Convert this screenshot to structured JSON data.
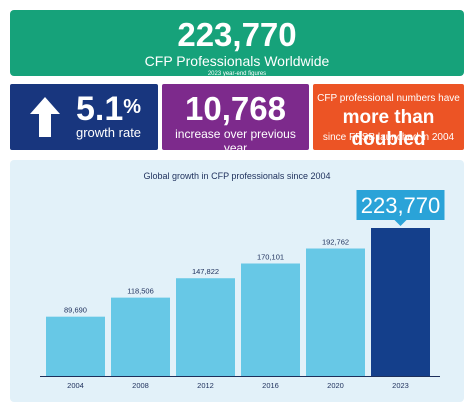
{
  "banner": {
    "headline": "223,770",
    "subtitle": "CFP Professionals Worldwide",
    "note": "2023 year-end figures"
  },
  "stats": {
    "growth_value": "5.1",
    "growth_unit": "%",
    "growth_label": "growth rate",
    "increase_value": "10,768",
    "increase_label": "increase over previous year",
    "doubled_line1": "CFP professional numbers have",
    "doubled_line2": "more than doubled",
    "doubled_line3": "since FPSB launched in 2004"
  },
  "colors": {
    "bar": "#67c8e6",
    "bar_highlight": "#143f8b",
    "value_text": "#1d2f5b",
    "callout_bg": "#2aa3d8"
  },
  "chart_data": {
    "type": "bar",
    "title": "Global growth in CFP professionals since 2004",
    "categories": [
      "2004",
      "2008",
      "2012",
      "2016",
      "2020",
      "2023"
    ],
    "values": [
      89690,
      118506,
      147822,
      170101,
      192762,
      223770
    ],
    "value_labels": [
      "89,690",
      "118,506",
      "147,822",
      "170,101",
      "192,762",
      "223,770"
    ],
    "highlight_index": 5,
    "xlabel": "",
    "ylabel": "",
    "ylim": [
      0,
      223770
    ],
    "grid": false,
    "legend": "none"
  }
}
